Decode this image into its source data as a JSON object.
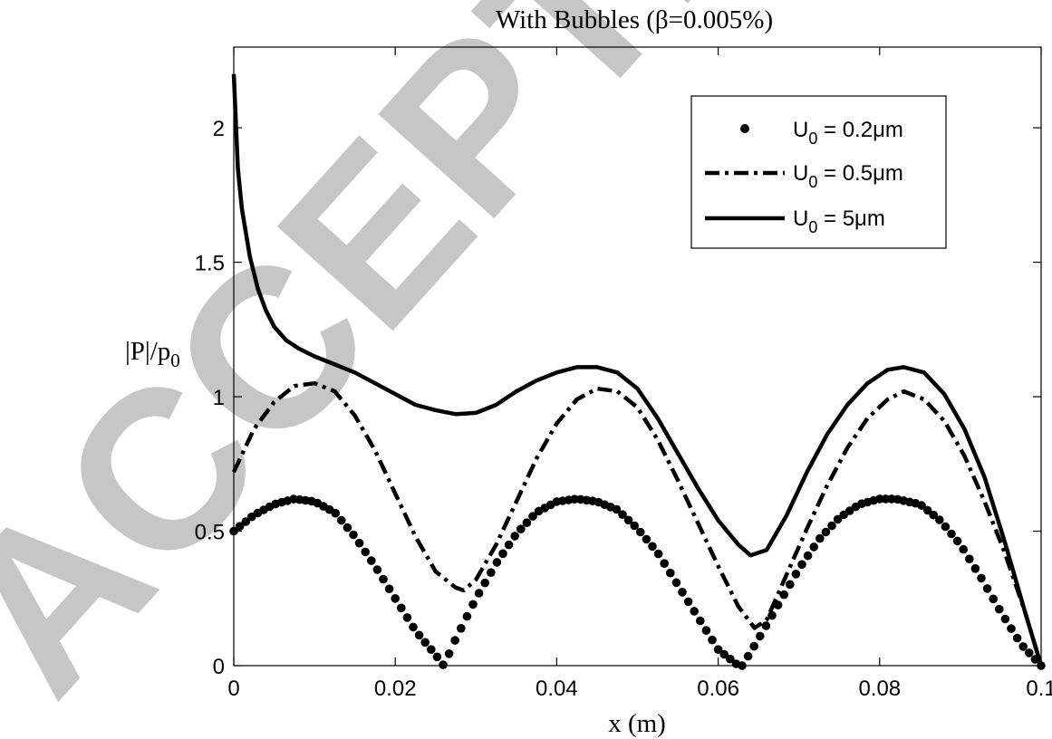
{
  "watermark": "ACCEPTED MANUSCRIPT",
  "chart_data": {
    "type": "line",
    "title": "With Bubbles (β=0.005%)",
    "xlabel": "x (m)",
    "ylabel_main": "|P|/p",
    "ylabel_sub": "0",
    "xlim": [
      0,
      0.1
    ],
    "ylim": [
      0,
      2.3
    ],
    "xticks": [
      0,
      0.02,
      0.04,
      0.06,
      0.08,
      0.1
    ],
    "xtick_labels": [
      "0",
      "0.02",
      "0.04",
      "0.06",
      "0.08",
      "0.1"
    ],
    "yticks": [
      0,
      0.5,
      1,
      1.5,
      2
    ],
    "ytick_labels": [
      "0",
      "0.5",
      "1",
      "1.5",
      "2"
    ],
    "grid": false,
    "legend_position": "top-right",
    "series": [
      {
        "name": "U0 = 0.2μm",
        "label_main": "U",
        "label_sub": "0",
        "label_rest": " = 0.2μm",
        "style": "dotted-markers",
        "x": [
          0,
          0.0025,
          0.005,
          0.0075,
          0.01,
          0.0125,
          0.015,
          0.0175,
          0.02,
          0.0225,
          0.025,
          0.026,
          0.0275,
          0.03,
          0.0325,
          0.035,
          0.0375,
          0.04,
          0.0425,
          0.045,
          0.0475,
          0.05,
          0.0525,
          0.055,
          0.0575,
          0.06,
          0.0625,
          0.063,
          0.065,
          0.0675,
          0.07,
          0.0725,
          0.075,
          0.0775,
          0.08,
          0.082,
          0.085,
          0.0875,
          0.09,
          0.0925,
          0.095,
          0.0975,
          0.1
        ],
        "y": [
          0.5,
          0.56,
          0.6,
          0.62,
          0.61,
          0.57,
          0.48,
          0.37,
          0.25,
          0.13,
          0.04,
          0.0,
          0.1,
          0.25,
          0.38,
          0.49,
          0.57,
          0.61,
          0.62,
          0.61,
          0.58,
          0.51,
          0.42,
          0.3,
          0.18,
          0.06,
          0.0,
          0.0,
          0.1,
          0.23,
          0.36,
          0.47,
          0.55,
          0.6,
          0.62,
          0.62,
          0.6,
          0.54,
          0.45,
          0.33,
          0.2,
          0.08,
          0.0
        ]
      },
      {
        "name": "U0 = 0.5μm",
        "label_main": "U",
        "label_sub": "0",
        "label_rest": " = 0.5μm",
        "style": "dash-dot",
        "x": [
          0,
          0.0025,
          0.005,
          0.0075,
          0.01,
          0.0125,
          0.015,
          0.0175,
          0.02,
          0.0225,
          0.025,
          0.0275,
          0.0285,
          0.03,
          0.0325,
          0.035,
          0.0375,
          0.04,
          0.0425,
          0.045,
          0.0475,
          0.05,
          0.0525,
          0.055,
          0.0575,
          0.06,
          0.0625,
          0.0645,
          0.066,
          0.0685,
          0.071,
          0.0735,
          0.076,
          0.0785,
          0.081,
          0.083,
          0.0855,
          0.088,
          0.0905,
          0.093,
          0.0955,
          0.098,
          0.1
        ],
        "y": [
          0.72,
          0.88,
          0.98,
          1.04,
          1.05,
          1.02,
          0.93,
          0.8,
          0.64,
          0.48,
          0.35,
          0.29,
          0.28,
          0.32,
          0.45,
          0.61,
          0.77,
          0.9,
          0.99,
          1.03,
          1.02,
          0.96,
          0.84,
          0.69,
          0.53,
          0.37,
          0.22,
          0.14,
          0.17,
          0.34,
          0.51,
          0.67,
          0.81,
          0.92,
          0.99,
          1.02,
          0.99,
          0.91,
          0.78,
          0.61,
          0.42,
          0.2,
          0.0
        ]
      },
      {
        "name": "U0 = 5μm",
        "label_main": "U",
        "label_sub": "0",
        "label_rest": " = 5μm",
        "style": "solid",
        "x": [
          0,
          0.0005,
          0.001,
          0.002,
          0.003,
          0.004,
          0.005,
          0.0065,
          0.008,
          0.01,
          0.0125,
          0.015,
          0.0175,
          0.02,
          0.0225,
          0.025,
          0.0275,
          0.03,
          0.0325,
          0.035,
          0.0375,
          0.04,
          0.0425,
          0.045,
          0.0475,
          0.05,
          0.0525,
          0.055,
          0.0575,
          0.06,
          0.0625,
          0.064,
          0.066,
          0.0685,
          0.071,
          0.0735,
          0.076,
          0.0785,
          0.081,
          0.083,
          0.0855,
          0.088,
          0.0905,
          0.093,
          0.0955,
          0.098,
          0.1
        ],
        "y": [
          2.2,
          1.85,
          1.7,
          1.52,
          1.4,
          1.32,
          1.26,
          1.21,
          1.18,
          1.15,
          1.12,
          1.09,
          1.05,
          1.01,
          0.97,
          0.95,
          0.935,
          0.94,
          0.97,
          1.02,
          1.06,
          1.09,
          1.11,
          1.11,
          1.09,
          1.03,
          0.92,
          0.79,
          0.66,
          0.54,
          0.45,
          0.41,
          0.43,
          0.56,
          0.72,
          0.86,
          0.97,
          1.05,
          1.1,
          1.11,
          1.09,
          1.01,
          0.88,
          0.7,
          0.46,
          0.2,
          0.0
        ]
      }
    ]
  }
}
